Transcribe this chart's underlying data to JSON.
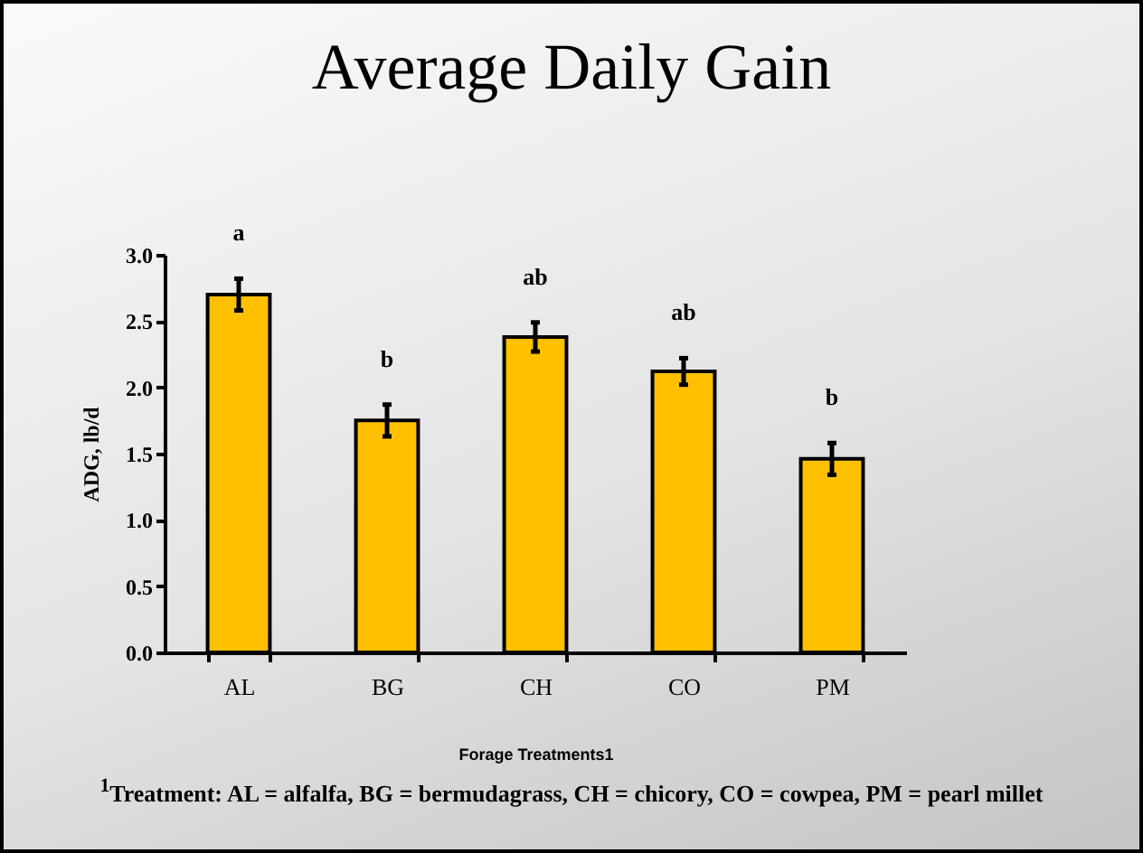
{
  "chart_data": {
    "type": "bar",
    "title": "Average Daily Gain",
    "xlabel": "Forage Treatments1",
    "ylabel": "ADG, lb/d",
    "categories": [
      "AL",
      "BG",
      "CH",
      "CO",
      "PM"
    ],
    "values": [
      2.7,
      1.75,
      2.38,
      2.12,
      1.46
    ],
    "errors": [
      0.12,
      0.12,
      0.11,
      0.1,
      0.12
    ],
    "color": "#ffc000",
    "ylim": [
      0,
      3.0
    ],
    "yticks": [
      {
        "value": 0,
        "label": "0.0"
      },
      {
        "value": 0.5,
        "label": "0.5"
      },
      {
        "value": 1,
        "label": "1.0"
      },
      {
        "value": 1.5,
        "label": "1.5"
      },
      {
        "value": 2,
        "label": "2.0"
      },
      {
        "value": 2.5,
        "label": "2.5"
      },
      {
        "value": 3,
        "label": "3.0"
      }
    ],
    "grid": false,
    "annotations": [
      "a",
      "b",
      "ab",
      "ab",
      "b",
      "$^{1}$Treatment:  AL = alfalfa, BG = bermudagrass, CH = chicory, CO = cowpea, PM = pearl millet"
    ]
  }
}
